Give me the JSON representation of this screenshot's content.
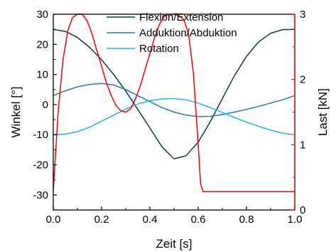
{
  "chart_data": {
    "type": "line",
    "title": "",
    "x_axis": {
      "label": "Zeit [s]",
      "range": [
        0.0,
        1.0
      ],
      "ticks": [
        "0.0",
        "0.2",
        "0.4",
        "0.6",
        "0.8",
        "1.0"
      ]
    },
    "y_axis_left": {
      "label": "Winkel [°]",
      "range": [
        -35,
        30
      ],
      "ticks": [
        "-30",
        "-20",
        "-10",
        "0",
        "10",
        "20",
        "30"
      ]
    },
    "y_axis_right": {
      "label": "Last [kN]",
      "range": [
        0,
        3
      ],
      "ticks": [
        "0",
        "1",
        "2",
        "3"
      ],
      "color": "#ff0000"
    },
    "grid": false,
    "legend": "top-center",
    "series": [
      {
        "name": "Flexion/Extension",
        "axis": "left",
        "color": "#0d3a56",
        "x": [
          0.0,
          0.05,
          0.1,
          0.15,
          0.2,
          0.25,
          0.3,
          0.35,
          0.4,
          0.45,
          0.5,
          0.55,
          0.6,
          0.65,
          0.7,
          0.75,
          0.8,
          0.85,
          0.9,
          0.95,
          1.0
        ],
        "values": [
          25.0,
          24.3,
          22.3,
          19.0,
          14.9,
          10.0,
          4.5,
          -1.6,
          -7.8,
          -14.0,
          -18.0,
          -17.0,
          -12.5,
          -5.7,
          2.0,
          9.6,
          16.0,
          20.8,
          23.7,
          24.9,
          25.0
        ]
      },
      {
        "name": "Adduktion/Abduktion",
        "axis": "left",
        "color": "#1f7fae",
        "x": [
          0.0,
          0.05,
          0.1,
          0.15,
          0.2,
          0.25,
          0.3,
          0.35,
          0.4,
          0.45,
          0.5,
          0.55,
          0.6,
          0.65,
          0.7,
          0.75,
          0.8,
          0.85,
          0.9,
          0.95,
          1.0
        ],
        "values": [
          3.0,
          4.6,
          5.9,
          6.7,
          7.0,
          6.5,
          5.0,
          3.0,
          1.0,
          -1.0,
          -2.5,
          -3.5,
          -4.0,
          -3.9,
          -3.3,
          -2.5,
          -1.6,
          -0.6,
          0.5,
          1.6,
          3.0
        ]
      },
      {
        "name": "Rotation",
        "axis": "left",
        "color": "#22b5e8",
        "x": [
          0.0,
          0.05,
          0.1,
          0.15,
          0.2,
          0.25,
          0.3,
          0.35,
          0.4,
          0.45,
          0.5,
          0.55,
          0.6,
          0.65,
          0.7,
          0.75,
          0.8,
          0.85,
          0.9,
          0.95,
          1.0
        ],
        "values": [
          -10.0,
          -9.8,
          -9.0,
          -7.5,
          -5.5,
          -3.5,
          -1.5,
          0.2,
          1.3,
          1.9,
          2.0,
          1.6,
          0.5,
          -1.0,
          -2.6,
          -4.3,
          -5.8,
          -7.2,
          -8.5,
          -9.5,
          -10.0
        ]
      },
      {
        "name": "",
        "axis": "right",
        "color": "#ff0000",
        "x": [
          0.0,
          0.02,
          0.04,
          0.06,
          0.08,
          0.1,
          0.12,
          0.14,
          0.16,
          0.18,
          0.2,
          0.22,
          0.24,
          0.26,
          0.28,
          0.3,
          0.32,
          0.34,
          0.36,
          0.38,
          0.4,
          0.42,
          0.44,
          0.46,
          0.48,
          0.5,
          0.52,
          0.54,
          0.56,
          0.58,
          0.6,
          0.61,
          0.62,
          0.65,
          0.7,
          0.8,
          0.9,
          1.0
        ],
        "values": [
          0.3,
          1.5,
          2.3,
          2.75,
          2.95,
          3.0,
          3.0,
          2.9,
          2.7,
          2.45,
          2.2,
          1.95,
          1.75,
          1.6,
          1.52,
          1.5,
          1.55,
          1.7,
          1.9,
          2.15,
          2.4,
          2.65,
          2.85,
          2.97,
          3.0,
          3.0,
          2.98,
          2.92,
          2.7,
          2.1,
          1.0,
          0.4,
          0.28,
          0.28,
          0.28,
          0.28,
          0.28,
          0.28
        ]
      }
    ]
  }
}
